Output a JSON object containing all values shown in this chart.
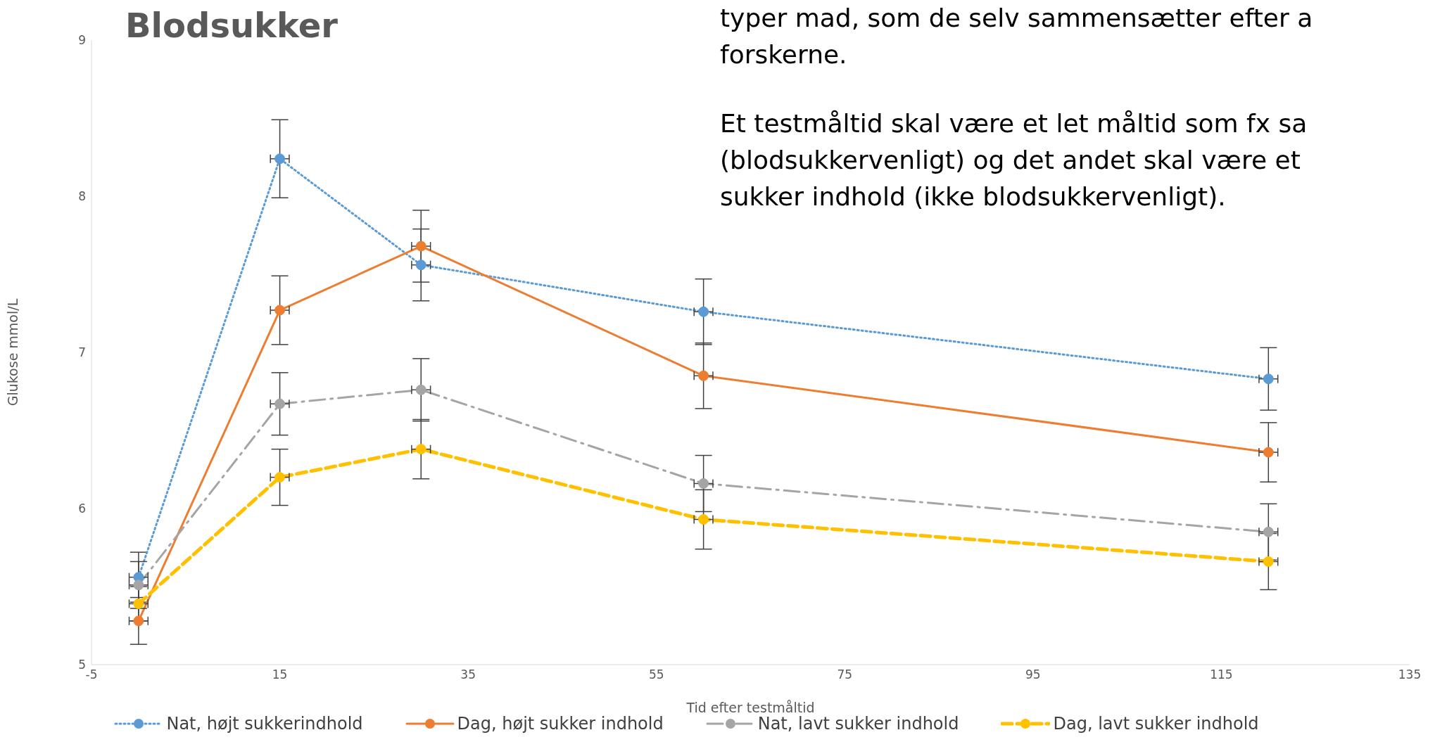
{
  "chart_data": {
    "type": "line",
    "title": "Blodsukker",
    "xlabel": "Tid efter testmåltid",
    "ylabel": "Glukose mmol/L",
    "annotations": [
      "typer mad, som de selv sammensætter efter a",
      "forskerne.",
      "Et testmåltid skal være et let måltid som fx sa",
      "(blodsukkervenligt) og det andet skal være et",
      "sukker indhold (ikke blodsukkervenligt)."
    ],
    "x": [
      0,
      15,
      30,
      60,
      120
    ],
    "series": [
      {
        "name": "Nat, højt sukkerindhold",
        "color": "#5b9bd5",
        "line_style": "dotted",
        "values": [
          5.56,
          8.24,
          7.56,
          7.26,
          6.83
        ],
        "errors": [
          0.16,
          0.25,
          0.23,
          0.21,
          0.2
        ],
        "xerrors": [
          1,
          1,
          1,
          1,
          1
        ]
      },
      {
        "name": "Dag, højt sukker indhold",
        "color": "#ed7d31",
        "line_style": "solid",
        "values": [
          5.28,
          7.27,
          7.68,
          6.85,
          6.36
        ],
        "errors": [
          0.15,
          0.22,
          0.23,
          0.21,
          0.19
        ],
        "xerrors": [
          1,
          1,
          1,
          1,
          1
        ]
      },
      {
        "name": "Nat, lavt sukker indhold",
        "color": "#a5a5a5",
        "line_style": "dashdot",
        "values": [
          5.51,
          6.67,
          6.76,
          6.16,
          5.85
        ],
        "errors": [
          0.15,
          0.2,
          0.2,
          0.18,
          0.18
        ],
        "xerrors": [
          1,
          1,
          1,
          1,
          1
        ]
      },
      {
        "name": "Dag, lavt sukker indhold",
        "color": "#ffc000",
        "line_style": "dashed",
        "values": [
          5.39,
          6.2,
          6.38,
          5.93,
          5.66
        ],
        "errors": [
          0.11,
          0.18,
          0.19,
          0.19,
          0.18
        ],
        "xerrors": [
          1,
          1,
          1,
          1,
          1
        ]
      }
    ],
    "marker": "circle",
    "legend": "bottom",
    "grid": false,
    "xlim": [
      -5,
      135
    ],
    "xticks": [
      -5,
      15,
      35,
      55,
      75,
      95,
      115,
      135
    ],
    "ylim": [
      5,
      9
    ],
    "yticks": [
      5,
      6,
      7,
      8,
      9
    ]
  }
}
